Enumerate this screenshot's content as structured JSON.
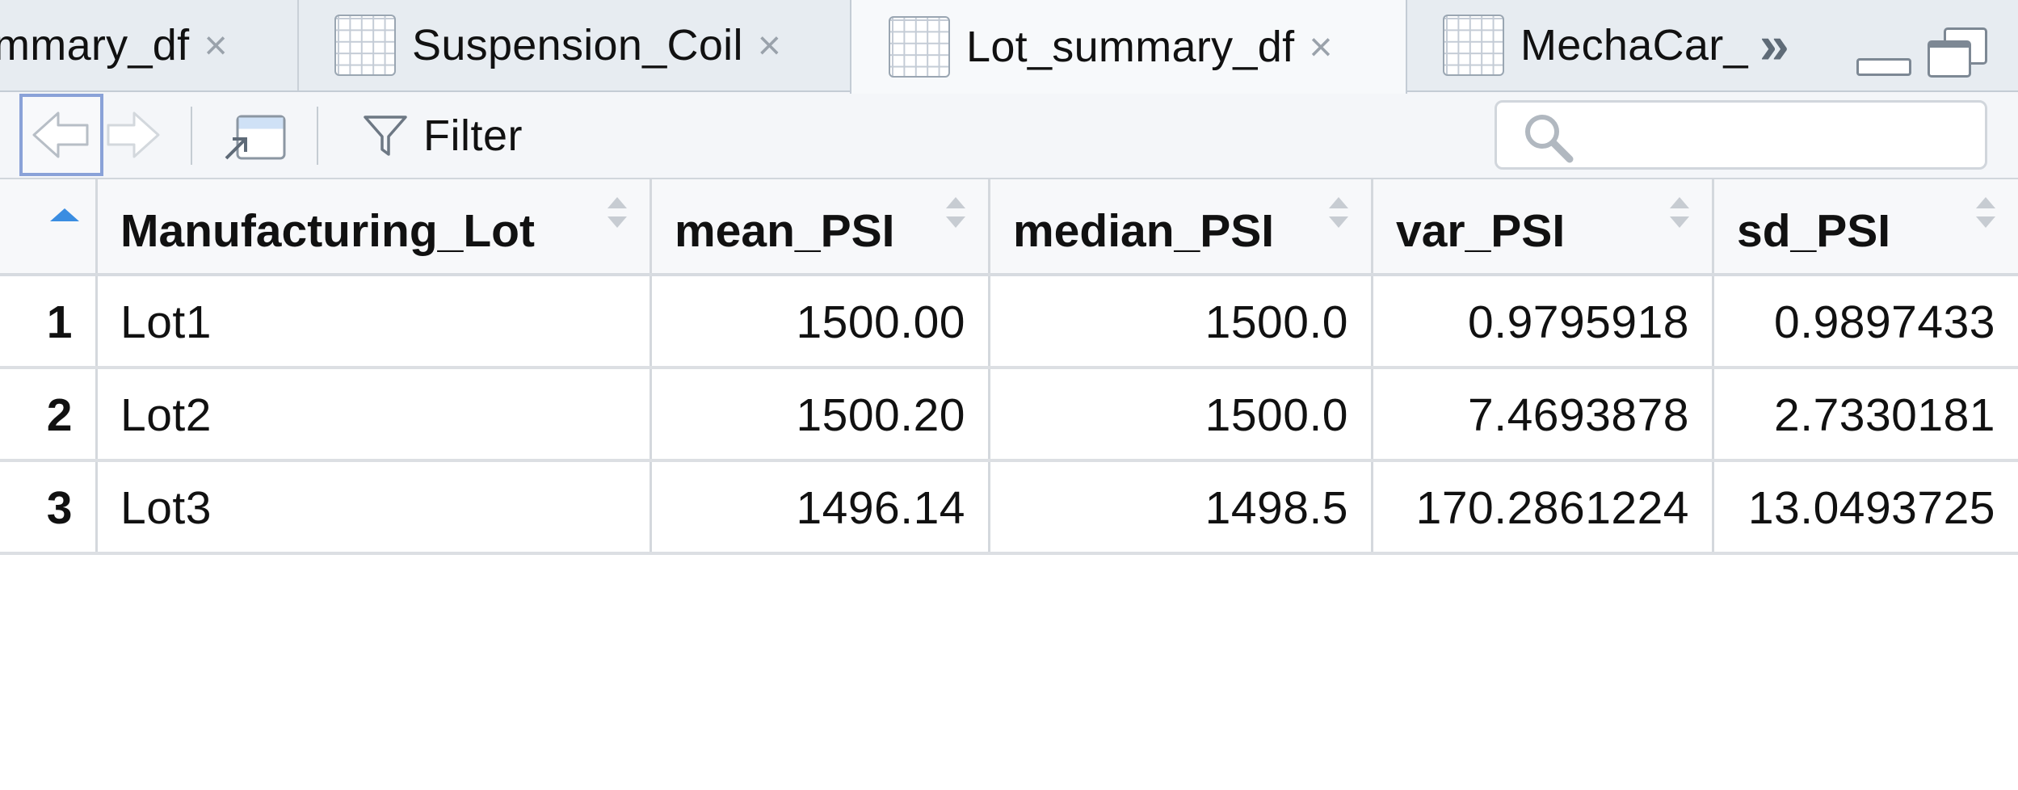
{
  "tabs": [
    {
      "label": "mmary_df",
      "active": false,
      "has_icon": false
    },
    {
      "label": "Suspension_Coil",
      "active": false,
      "has_icon": true
    },
    {
      "label": "Lot_summary_df",
      "active": true,
      "has_icon": true
    },
    {
      "label": "MechaCar_",
      "active": false,
      "has_icon": true
    }
  ],
  "tab_close_glyph": "×",
  "tab_overflow_glyph": "»",
  "toolbar": {
    "filter_label": "Filter",
    "search": {
      "value": "",
      "placeholder": ""
    }
  },
  "table": {
    "columns": [
      "Manufacturing_Lot",
      "mean_PSI",
      "median_PSI",
      "var_PSI",
      "sd_PSI"
    ],
    "sorted_column": "row_number",
    "sort_direction": "ascending",
    "rows": [
      {
        "row": "1",
        "cells": [
          "Lot1",
          "1500.00",
          "1500.0",
          "0.9795918",
          "0.9897433"
        ]
      },
      {
        "row": "2",
        "cells": [
          "Lot2",
          "1500.20",
          "1500.0",
          "7.4693878",
          "2.7330181"
        ]
      },
      {
        "row": "3",
        "cells": [
          "Lot3",
          "1496.14",
          "1498.5",
          "170.2861224",
          "13.0493725"
        ]
      }
    ]
  },
  "colors": {
    "accent_sort": "#3a8de1",
    "focus_border": "#8aa2d8",
    "tab_bg": "#e7ecf1",
    "active_tab_bg": "#f7f9fb"
  }
}
